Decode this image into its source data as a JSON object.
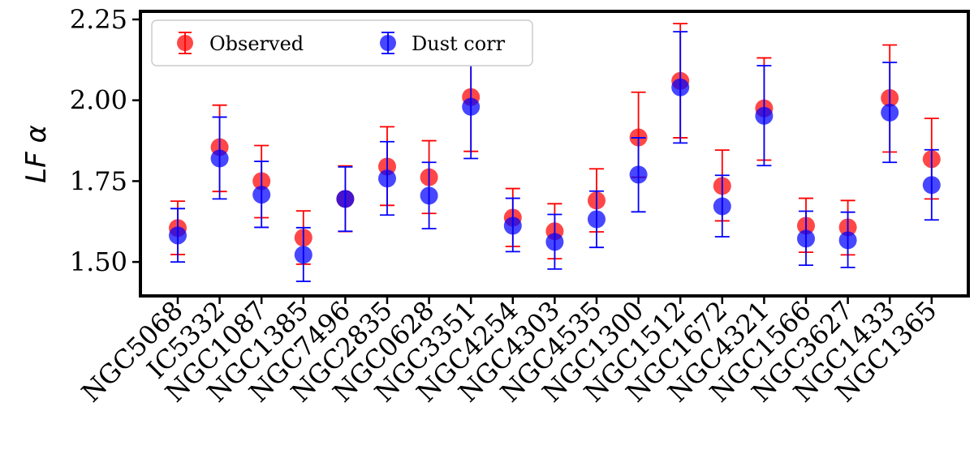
{
  "chart_data": {
    "type": "scatter",
    "title": "",
    "xlabel": "",
    "ylabel": "LF α",
    "ylim": [
      1.4,
      2.27
    ],
    "yticks": [
      1.5,
      1.75,
      2.0,
      2.25
    ],
    "ytick_labels": [
      "1.50",
      "1.75",
      "2.00",
      "2.25"
    ],
    "legend_position": "top-left",
    "categories": [
      "NGC5068",
      "IC5332",
      "NGC1087",
      "NGC1385",
      "NGC7496",
      "NGC2835",
      "NGC0628",
      "NGC3351",
      "NGC4254",
      "NGC4303",
      "NGC4535",
      "NGC1300",
      "NGC1512",
      "NGC1672",
      "NGC4321",
      "NGC1566",
      "NGC3627",
      "NGC1433",
      "NGC1365"
    ],
    "series": [
      {
        "name": "Observed",
        "color": "#ff0000",
        "values": [
          1.605,
          1.855,
          1.75,
          1.575,
          1.695,
          1.795,
          1.762,
          2.01,
          1.637,
          1.595,
          1.69,
          1.885,
          2.06,
          1.735,
          1.975,
          1.612,
          1.607,
          2.007,
          1.818
        ],
        "err_low": [
          1.523,
          1.718,
          1.637,
          1.493,
          1.594,
          1.675,
          1.65,
          1.842,
          1.548,
          1.51,
          1.593,
          1.762,
          1.884,
          1.627,
          1.815,
          1.53,
          1.522,
          1.84,
          1.695
        ],
        "err_high": [
          1.688,
          1.985,
          1.86,
          1.658,
          1.797,
          1.918,
          1.875,
          2.177,
          1.727,
          1.68,
          1.788,
          2.025,
          2.237,
          1.846,
          2.131,
          1.697,
          1.69,
          2.171,
          1.944
        ]
      },
      {
        "name": "Dust corr",
        "color": "#0000ff",
        "values": [
          1.582,
          1.82,
          1.708,
          1.522,
          1.695,
          1.758,
          1.705,
          1.98,
          1.612,
          1.562,
          1.632,
          1.77,
          2.04,
          1.672,
          1.952,
          1.572,
          1.567,
          1.962,
          1.738
        ],
        "err_low": [
          1.5,
          1.695,
          1.607,
          1.44,
          1.595,
          1.645,
          1.603,
          1.82,
          1.532,
          1.478,
          1.545,
          1.655,
          1.868,
          1.578,
          1.798,
          1.49,
          1.483,
          1.808,
          1.63
        ],
        "err_high": [
          1.665,
          1.948,
          1.811,
          1.606,
          1.794,
          1.872,
          1.808,
          2.141,
          1.697,
          1.647,
          1.719,
          1.884,
          2.212,
          1.768,
          2.107,
          1.657,
          1.654,
          2.117,
          1.847
        ]
      }
    ]
  }
}
